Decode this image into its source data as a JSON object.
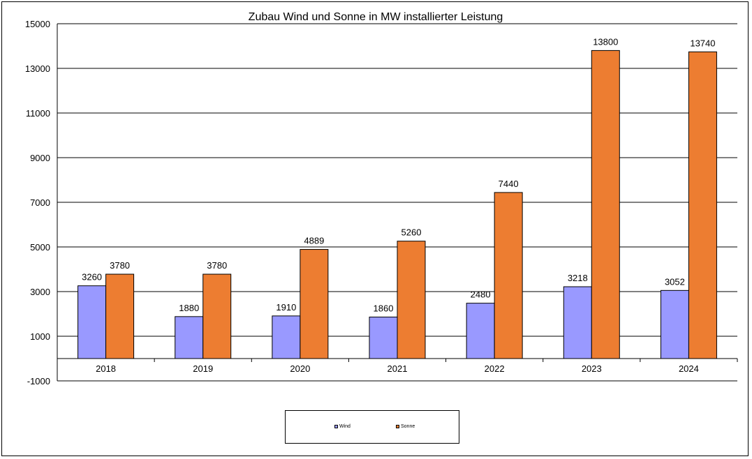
{
  "chart_data": {
    "type": "bar",
    "title": "Zubau Wind und Sonne in MW installierter Leistung",
    "categories": [
      "2018",
      "2019",
      "2020",
      "2021",
      "2022",
      "2023",
      "2024"
    ],
    "series": [
      {
        "name": "Wind",
        "color": "#9999ff",
        "values": [
          3260,
          1880,
          1910,
          1860,
          2480,
          3218,
          3052
        ]
      },
      {
        "name": "Sonne",
        "color": "#ed7d31",
        "values": [
          3780,
          3780,
          4889,
          5260,
          7440,
          13800,
          13740
        ]
      }
    ],
    "yticks": [
      15000,
      13000,
      11000,
      9000,
      7000,
      5000,
      3000,
      1000,
      -1000
    ],
    "ylim": [
      -1000,
      15000
    ],
    "grid": true,
    "legend_position": "bottom"
  }
}
